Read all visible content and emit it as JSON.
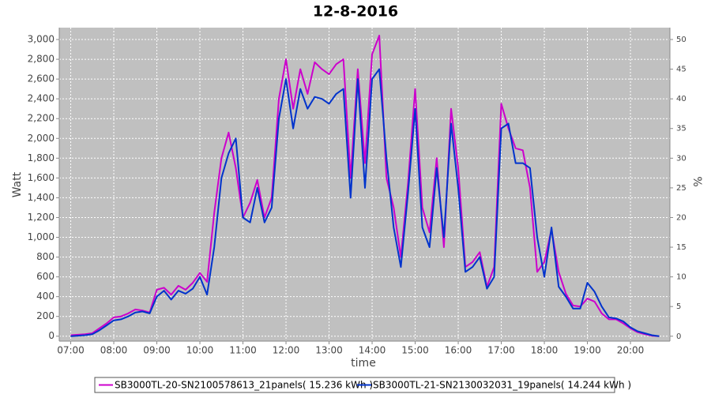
{
  "chart_data": {
    "type": "line",
    "title": "12-8-2016",
    "x_label": "time",
    "y_label": "Watt",
    "y2_label": "%",
    "x": [
      "07:00",
      "07:10",
      "07:20",
      "07:30",
      "07:40",
      "07:50",
      "08:00",
      "08:10",
      "08:20",
      "08:30",
      "08:40",
      "08:50",
      "09:00",
      "09:10",
      "09:20",
      "09:30",
      "09:40",
      "09:50",
      "10:00",
      "10:10",
      "10:20",
      "10:30",
      "10:40",
      "10:50",
      "11:00",
      "11:10",
      "11:20",
      "11:30",
      "11:40",
      "11:50",
      "12:00",
      "12:10",
      "12:20",
      "12:30",
      "12:40",
      "12:50",
      "13:00",
      "13:10",
      "13:20",
      "13:30",
      "13:40",
      "13:50",
      "14:00",
      "14:10",
      "14:20",
      "14:30",
      "14:40",
      "14:50",
      "15:00",
      "15:10",
      "15:20",
      "15:30",
      "15:40",
      "15:50",
      "16:00",
      "16:10",
      "16:20",
      "16:30",
      "16:40",
      "16:50",
      "17:00",
      "17:10",
      "17:20",
      "17:30",
      "17:40",
      "17:50",
      "18:00",
      "18:10",
      "18:20",
      "18:30",
      "18:40",
      "18:50",
      "19:00",
      "19:10",
      "19:20",
      "19:30",
      "19:40",
      "19:50",
      "20:00",
      "20:10",
      "20:20",
      "20:30",
      "20:40"
    ],
    "series": [
      {
        "name": "SB3000TL-20-SN2100578613_21panels( 15.236 kWh )",
        "color": "#cc00cc",
        "values": [
          10,
          15,
          20,
          30,
          80,
          130,
          190,
          200,
          230,
          270,
          260,
          240,
          470,
          490,
          420,
          510,
          470,
          540,
          640,
          550,
          1250,
          1800,
          2060,
          1700,
          1200,
          1350,
          1580,
          1200,
          1400,
          2400,
          2800,
          2300,
          2700,
          2450,
          2770,
          2700,
          2650,
          2750,
          2800,
          1600,
          2700,
          1750,
          2850,
          3040,
          1600,
          1300,
          800,
          1550,
          2500,
          1300,
          1050,
          1800,
          900,
          2300,
          1700,
          700,
          750,
          850,
          500,
          700,
          2350,
          2100,
          1900,
          1880,
          1500,
          650,
          750,
          1080,
          650,
          430,
          310,
          300,
          380,
          350,
          230,
          170,
          170,
          130,
          80,
          40,
          20,
          5,
          0
        ]
      },
      {
        "name": "SB3000TL-21-SN2130032031_19panels( 14.244 kWh )",
        "color": "#0033cc",
        "values": [
          0,
          5,
          10,
          20,
          60,
          110,
          160,
          170,
          200,
          240,
          250,
          230,
          400,
          460,
          370,
          460,
          430,
          480,
          600,
          420,
          900,
          1600,
          1850,
          2000,
          1200,
          1150,
          1500,
          1150,
          1300,
          2200,
          2600,
          2100,
          2500,
          2300,
          2420,
          2400,
          2350,
          2450,
          2500,
          1400,
          2600,
          1500,
          2600,
          2700,
          1800,
          1100,
          700,
          1450,
          2300,
          1100,
          900,
          1700,
          1000,
          2150,
          1500,
          650,
          700,
          800,
          480,
          600,
          2100,
          2150,
          1750,
          1750,
          1700,
          1000,
          600,
          1100,
          500,
          400,
          280,
          280,
          540,
          450,
          300,
          190,
          180,
          150,
          90,
          50,
          30,
          10,
          0
        ]
      }
    ],
    "xlim": [
      "06:44",
      "20:55"
    ],
    "xticks": [
      "07:00",
      "08:00",
      "09:00",
      "10:00",
      "11:00",
      "12:00",
      "13:00",
      "14:00",
      "15:00",
      "16:00",
      "17:00",
      "18:00",
      "19:00",
      "20:00"
    ],
    "ylim": [
      -50,
      3120
    ],
    "yticks": [
      0,
      200,
      400,
      600,
      800,
      {
        "value": 1000,
        "label": "1,000"
      },
      {
        "value": 1200,
        "label": "1,200"
      },
      {
        "value": 1400,
        "label": "1,400"
      },
      {
        "value": 1600,
        "label": "1,600"
      },
      {
        "value": 1800,
        "label": "1,800"
      },
      {
        "value": 2000,
        "label": "2,000"
      },
      {
        "value": 2200,
        "label": "2,200"
      },
      {
        "value": 2400,
        "label": "2,400"
      },
      {
        "value": 2600,
        "label": "2,600"
      },
      {
        "value": 2800,
        "label": "2,800"
      },
      {
        "value": 3000,
        "label": "3,000"
      }
    ],
    "y2lim": [
      -0.83,
      52
    ],
    "y2ticks": [
      0,
      5,
      10,
      15,
      20,
      25,
      30,
      35,
      40,
      45,
      50
    ],
    "grid": true,
    "legend": "bottom"
  }
}
